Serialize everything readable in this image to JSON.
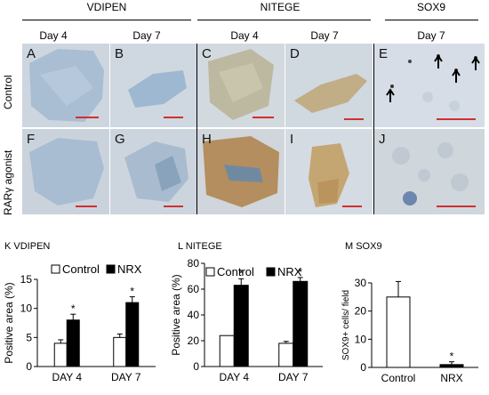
{
  "headers": {
    "groups": [
      "VDIPEN",
      "NITEGE",
      "SOX9"
    ],
    "days": [
      "Day 4",
      "Day 7",
      "Day 4",
      "Day 7",
      "Day 7"
    ]
  },
  "rows": [
    "Control",
    "RARγ agonist"
  ],
  "panel_labels": [
    "A",
    "B",
    "C",
    "D",
    "E",
    "F",
    "G",
    "H",
    "I",
    "J"
  ],
  "colors": {
    "control_bg": "#c9d3de",
    "agonist_bg": "#c6d0db",
    "vdipen_tissue": "#9fb7cf",
    "nitege_tissue": "#b7a37c",
    "scale_bar": "#d03030"
  },
  "chart_data": [
    {
      "type": "bar",
      "title": "K  VDIPEN",
      "categories": [
        "DAY 4",
        "DAY 7"
      ],
      "ylabel": "Positive area  (%)",
      "ylim": [
        0,
        15
      ],
      "yticks": [
        0,
        5,
        10,
        15
      ],
      "legend": [
        "Control",
        "NRX"
      ],
      "legend_position": "top",
      "series": [
        {
          "name": "Control",
          "values": [
            4,
            5
          ],
          "errors": [
            0.6,
            0.6
          ],
          "color": "#ffffff"
        },
        {
          "name": "NRX",
          "values": [
            8,
            11
          ],
          "errors": [
            1.0,
            1.0
          ],
          "color": "#000000"
        }
      ],
      "annotations": [
        "*",
        "*"
      ]
    },
    {
      "type": "bar",
      "title": "L  NITEGE",
      "categories": [
        "DAY 4",
        "DAY 7"
      ],
      "ylabel": "Positive area  (%)",
      "ylim": [
        0,
        80
      ],
      "yticks": [
        0,
        20,
        40,
        60,
        80
      ],
      "legend": [
        "Control",
        "NRX"
      ],
      "legend_position": "top",
      "series": [
        {
          "name": "Control",
          "values": [
            24,
            18
          ],
          "errors": [
            0,
            1.5
          ],
          "color": "#ffffff"
        },
        {
          "name": "NRX",
          "values": [
            63,
            66
          ],
          "errors": [
            5,
            3
          ],
          "color": "#000000"
        }
      ],
      "annotations": [
        "*",
        "*"
      ]
    },
    {
      "type": "bar",
      "title": "M  SOX9",
      "categories": [
        "Control",
        "NRX"
      ],
      "ylabel": "SOX9+ cells/ field",
      "ylim": [
        0,
        30
      ],
      "yticks": [
        0,
        10,
        20,
        30
      ],
      "series": [
        {
          "name": "",
          "values": [
            25,
            1
          ],
          "errors": [
            5.5,
            1
          ],
          "colors": [
            "#ffffff",
            "#000000"
          ]
        }
      ],
      "annotations": [
        "*"
      ]
    }
  ]
}
